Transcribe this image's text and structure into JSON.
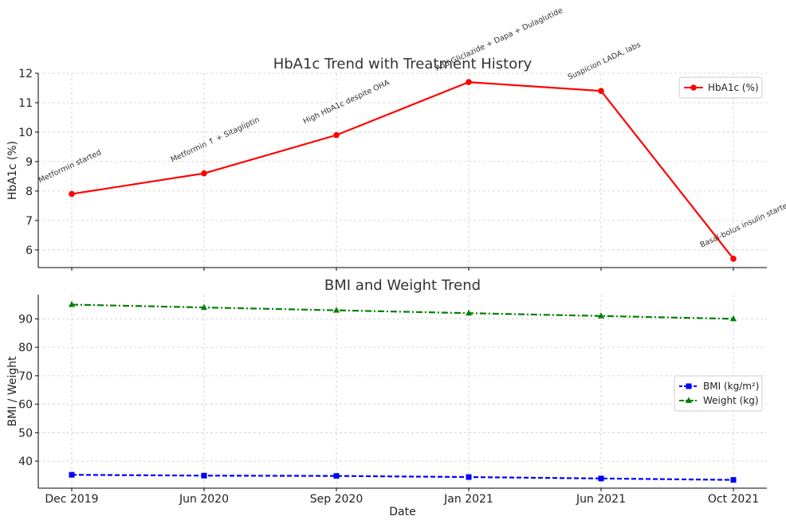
{
  "chart_data": [
    {
      "type": "line",
      "title": "HbA1c Trend with Treatment History",
      "xlabel": "",
      "ylabel": "HbA1c (%)",
      "categories": [
        "Dec 2019",
        "Jun 2020",
        "Sep 2020",
        "Jan 2021",
        "Jun 2021",
        "Oct 2021"
      ],
      "ylim": [
        5.4,
        12
      ],
      "yticks": [
        6,
        7,
        8,
        9,
        10,
        11,
        12
      ],
      "grid": true,
      "legend_position": "top-right",
      "series": [
        {
          "name": "HbA1c (%)",
          "color": "#ff0000",
          "marker": "circle",
          "linestyle": "solid",
          "values": [
            7.9,
            8.6,
            9.9,
            11.7,
            11.4,
            5.7
          ]
        }
      ],
      "annotations": [
        "Metformin started",
        "Metformin ↑ + Sitagliptin",
        "High HbA1c despite OHA",
        "Add Gliclazide + Dapa + Dulaglutide",
        "Suspicion LADA, labs",
        "Basal-bolus insulin started"
      ]
    },
    {
      "type": "line",
      "title": "BMI and Weight Trend",
      "xlabel": "Date",
      "ylabel": "BMI / Weight",
      "categories": [
        "Dec 2019",
        "Jun 2020",
        "Sep 2020",
        "Jan 2021",
        "Jun 2021",
        "Oct 2021"
      ],
      "ylim": [
        30.5,
        98.5
      ],
      "yticks": [
        40,
        50,
        60,
        70,
        80,
        90
      ],
      "grid": true,
      "legend_position": "center-right",
      "series": [
        {
          "name": "BMI (kg/m²)",
          "color": "#0000ff",
          "marker": "square",
          "linestyle": "dashed",
          "values": [
            35.2,
            34.9,
            34.8,
            34.4,
            33.9,
            33.4
          ]
        },
        {
          "name": "Weight (kg)",
          "color": "#008000",
          "marker": "triangle",
          "linestyle": "dashdot",
          "values": [
            95,
            94,
            93,
            92,
            91,
            90
          ]
        }
      ]
    }
  ]
}
